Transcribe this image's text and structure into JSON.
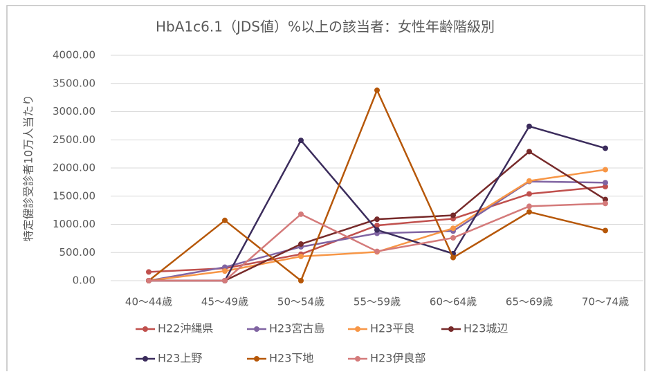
{
  "chart_data": {
    "type": "line",
    "title": "HbA1c6.1（JDS値）%以上の該当者：女性年齢階級別",
    "y_label": "特定健診受診者10万人当たり",
    "categories": [
      "40～44歳",
      "45～49歳",
      "50～54歳",
      "55～59歳",
      "60～64歳",
      "65～69歳",
      "70～74歳"
    ],
    "series": [
      {
        "name": "H22沖縄県",
        "color": "#c0504d",
        "values": [
          155,
          220,
          470,
          980,
          1100,
          1540,
          1670
        ]
      },
      {
        "name": "H23宮古島",
        "color": "#8064a2",
        "values": [
          0,
          240,
          600,
          840,
          880,
          1760,
          1740
        ]
      },
      {
        "name": "H23平良",
        "color": "#f79646",
        "values": [
          0,
          170,
          430,
          510,
          930,
          1770,
          1970
        ]
      },
      {
        "name": "H23城辺",
        "color": "#772a2a",
        "values": [
          0,
          0,
          650,
          1090,
          1160,
          2290,
          1440
        ]
      },
      {
        "name": "H23上野",
        "color": "#3b2c5c",
        "values": [
          0,
          0,
          2490,
          900,
          480,
          2740,
          2350
        ]
      },
      {
        "name": "H23下地",
        "color": "#b65708",
        "values": [
          0,
          1070,
          0,
          3380,
          410,
          1220,
          890
        ]
      },
      {
        "name": "H23伊良部",
        "color": "#d47a7a",
        "values": [
          0,
          0,
          1180,
          520,
          760,
          1320,
          1370
        ]
      }
    ],
    "ylim": [
      0,
      4000
    ],
    "yticks": [
      {
        "value": 0,
        "label": "0.00"
      },
      {
        "value": 500,
        "label": "500.00"
      },
      {
        "value": 1000,
        "label": "1000.00"
      },
      {
        "value": 1500,
        "label": "1500.00"
      },
      {
        "value": 2000,
        "label": "2000.00"
      },
      {
        "value": 2500,
        "label": "2500.00"
      },
      {
        "value": 3000,
        "label": "3000.00"
      },
      {
        "value": 3500,
        "label": "3500.00"
      },
      {
        "value": 4000,
        "label": "4000.00"
      }
    ],
    "grid": true,
    "legend": "bottom"
  }
}
